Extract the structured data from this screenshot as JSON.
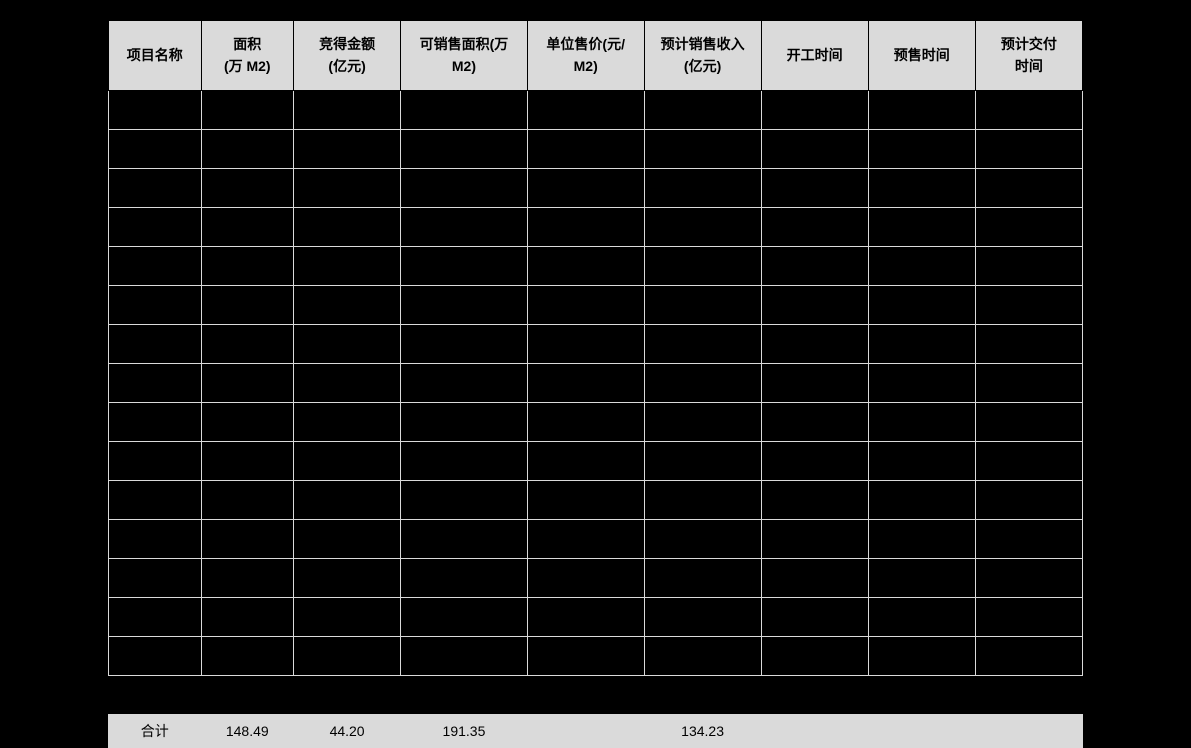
{
  "table": {
    "background_color": "#000000",
    "header_bg": "#dadada",
    "header_text_color": "#000000",
    "body_cell_bg": "#000000",
    "body_border_color": "#dadada",
    "totals_bg": "#dadada",
    "font_family": "SimSun",
    "header_fontsize": 14,
    "body_row_height": 36,
    "columns": [
      {
        "label_line1": "项目名称",
        "label_line2": ""
      },
      {
        "label_line1": "面积",
        "label_line2": "(万 M2)"
      },
      {
        "label_line1": "竞得金额",
        "label_line2": "(亿元)"
      },
      {
        "label_line1": "可销售面积(万",
        "label_line2": "M2)"
      },
      {
        "label_line1": "单位售价(元/",
        "label_line2": "M2)"
      },
      {
        "label_line1": "预计销售收入",
        "label_line2": "(亿元)"
      },
      {
        "label_line1": "开工时间",
        "label_line2": ""
      },
      {
        "label_line1": "预售时间",
        "label_line2": ""
      },
      {
        "label_line1": "预计交付",
        "label_line2": "时间"
      }
    ],
    "body_row_count": 15,
    "totals": {
      "label": "合计",
      "area": "148.49",
      "bid_amount": "44.20",
      "saleable_area": "191.35",
      "unit_price": "",
      "revenue": "134.23",
      "start": "",
      "presale": "",
      "delivery": ""
    }
  }
}
